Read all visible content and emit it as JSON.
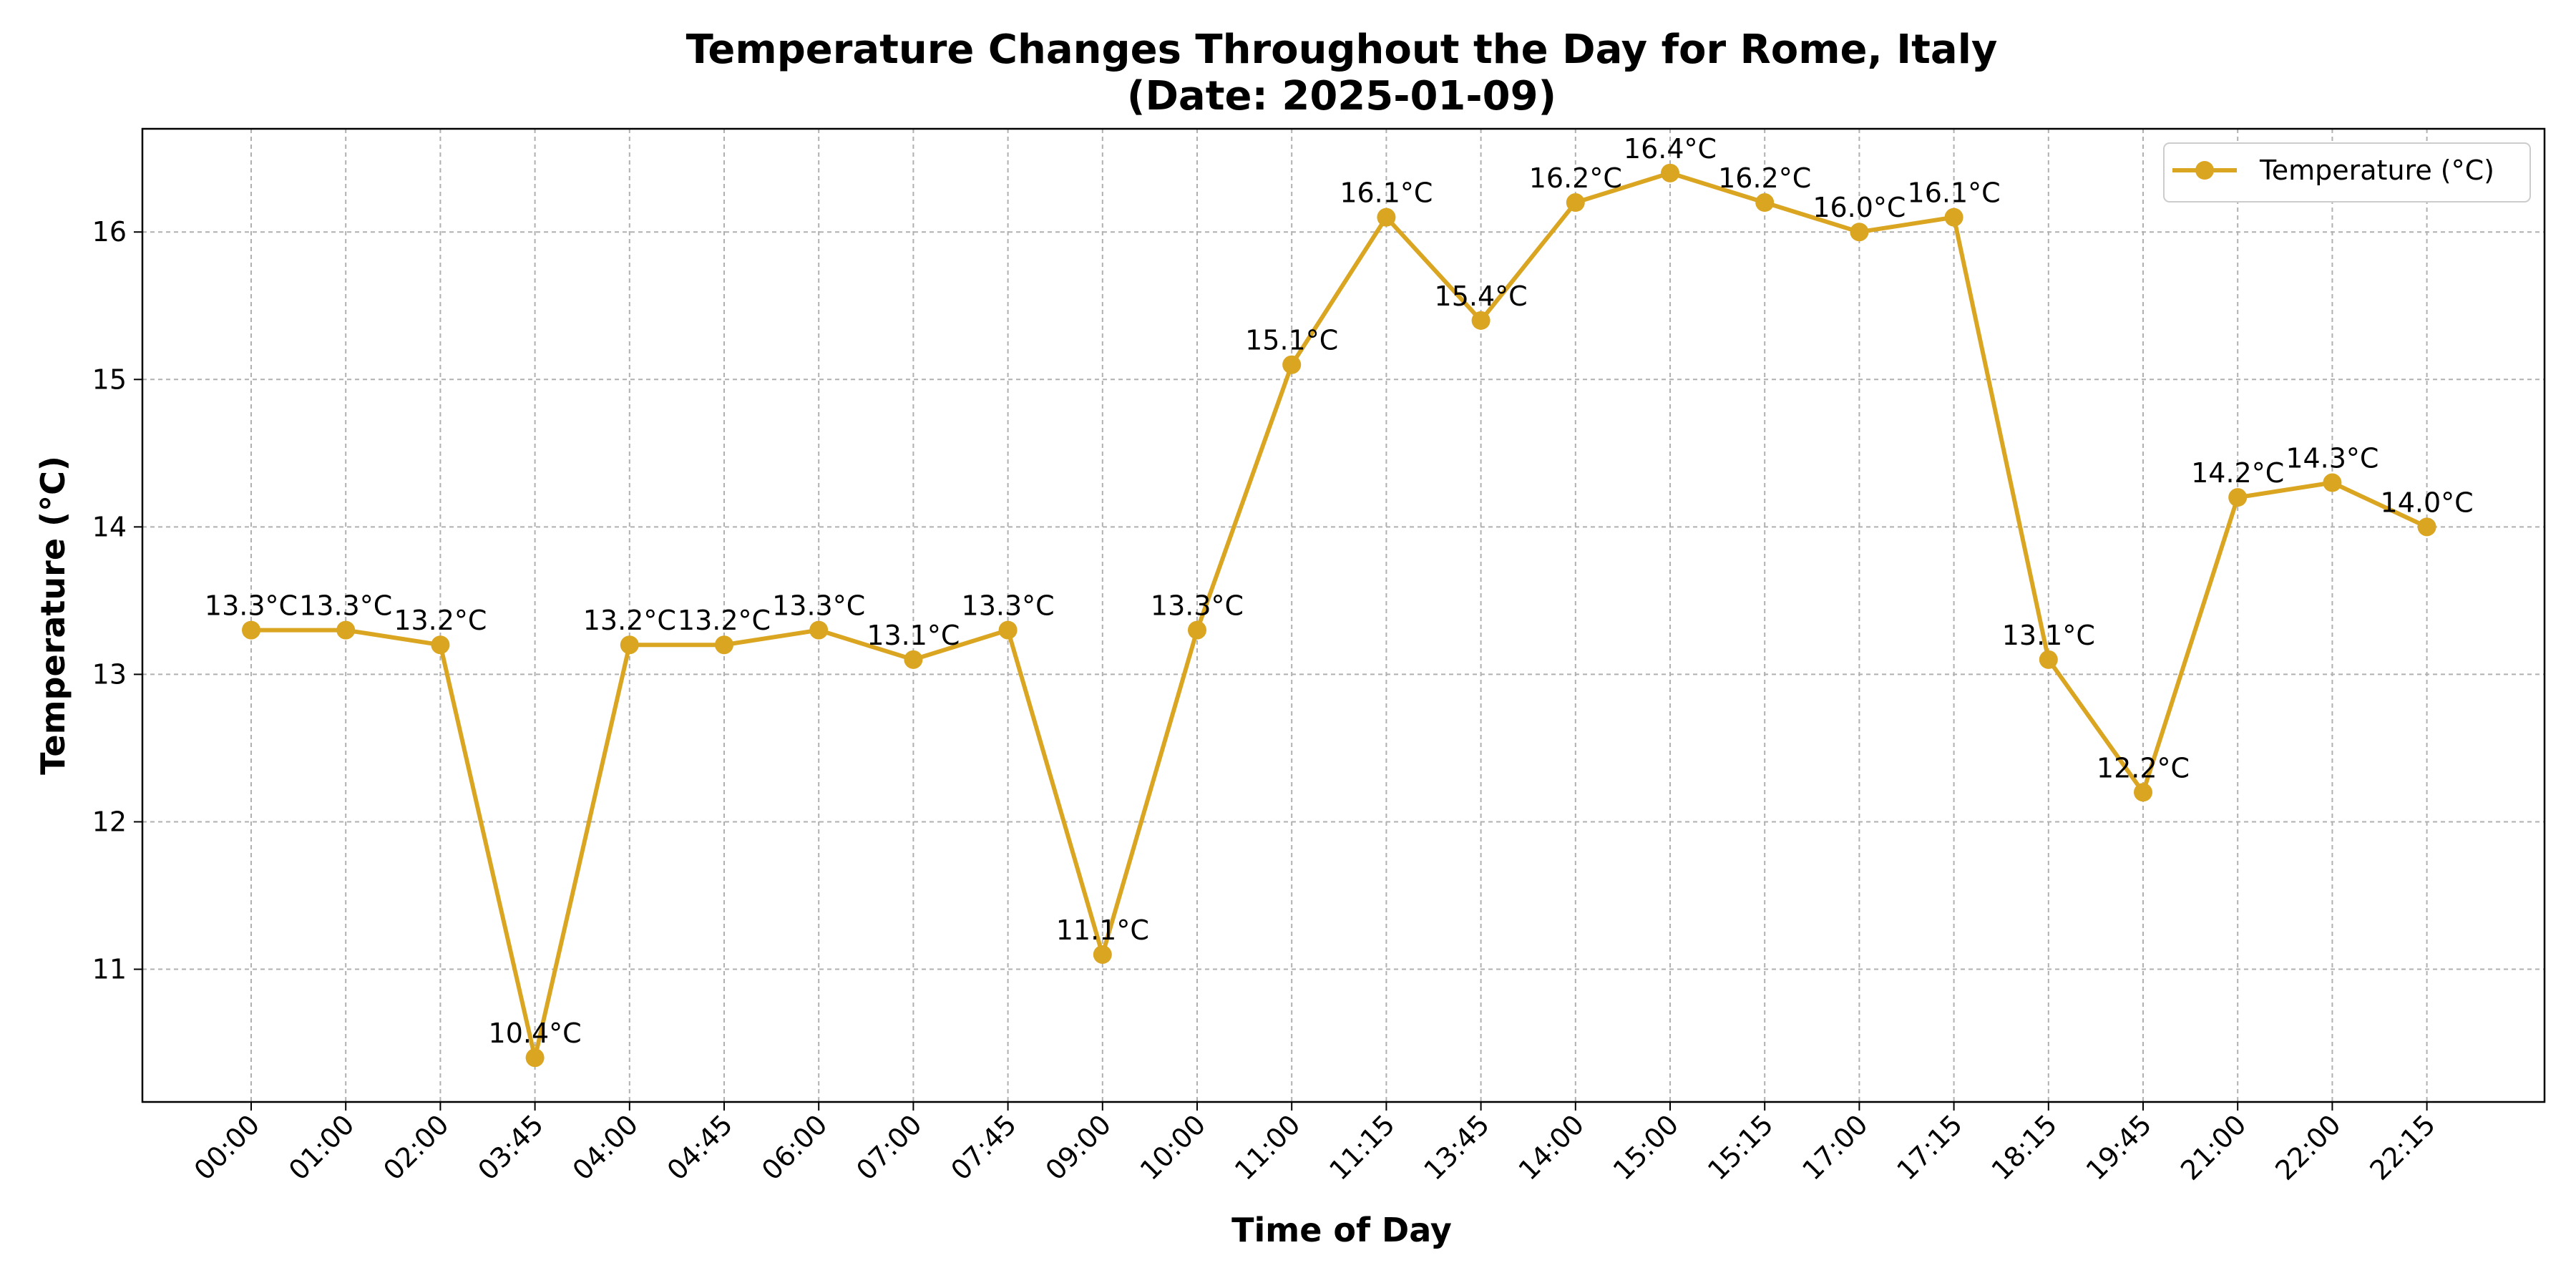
{
  "chart_data": {
    "type": "line",
    "title": "Temperature Changes Throughout the Day for Rome, Italy",
    "subtitle": "(Date: 2025-01-09)",
    "xlabel": "Time of Day",
    "ylabel": "Temperature (°C)",
    "categories": [
      "00:00",
      "01:00",
      "02:00",
      "03:45",
      "04:00",
      "04:45",
      "06:00",
      "07:00",
      "07:45",
      "09:00",
      "10:00",
      "11:00",
      "11:15",
      "13:45",
      "14:00",
      "15:00",
      "15:15",
      "17:00",
      "17:15",
      "18:15",
      "19:45",
      "21:00",
      "22:00",
      "22:15"
    ],
    "series": [
      {
        "name": "Temperature (°C)",
        "color": "#DAA520",
        "values": [
          13.3,
          13.3,
          13.2,
          10.4,
          13.2,
          13.2,
          13.3,
          13.1,
          13.3,
          11.1,
          13.3,
          15.1,
          16.1,
          15.4,
          16.2,
          16.4,
          16.2,
          16.0,
          16.1,
          13.1,
          12.2,
          14.2,
          14.3,
          14.0
        ],
        "data_labels": [
          "13.3°C",
          "13.3°C",
          "13.2°C",
          "10.4°C",
          "13.2°C",
          "13.2°C",
          "13.3°C",
          "13.1°C",
          "13.3°C",
          "11.1°C",
          "13.3°C",
          "15.1°C",
          "16.1°C",
          "15.4°C",
          "16.2°C",
          "16.4°C",
          "16.2°C",
          "16.0°C",
          "16.1°C",
          "13.1°C",
          "12.2°C",
          "14.2°C",
          "14.3°C",
          "14.0°C"
        ]
      }
    ],
    "ylim": [
      10.1,
      16.7
    ],
    "yticks": [
      11,
      12,
      13,
      14,
      15,
      16
    ],
    "ytick_labels": [
      "11",
      "12",
      "13",
      "14",
      "15",
      "16"
    ],
    "grid": true,
    "legend_position": "top-right"
  }
}
